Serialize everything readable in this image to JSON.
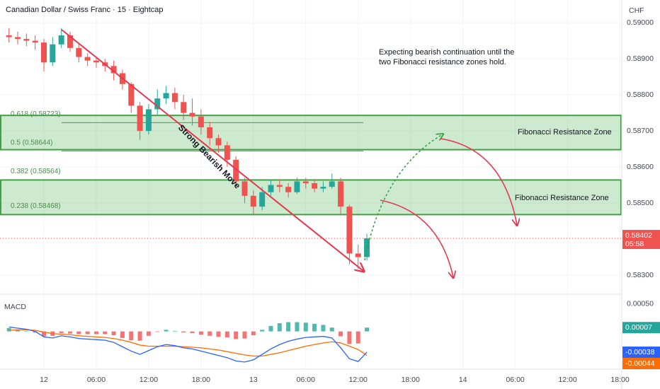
{
  "chart_data": [
    {
      "type": "candlestick",
      "title": "Canadian Dollar / Swiss Franc · 15 · Eightcap",
      "currency": "CHF",
      "countdown": "05:58",
      "up_color": "#26a69a",
      "down_color": "#ef5350",
      "grid": true,
      "x": [
        -4,
        -3,
        -2,
        -1,
        0,
        1,
        2,
        3,
        4,
        5,
        6,
        7,
        8,
        9,
        10,
        11,
        12,
        13,
        14,
        15,
        16,
        17,
        18,
        19,
        20,
        21,
        22,
        23,
        24,
        25,
        26,
        27,
        28,
        29,
        30,
        31,
        32,
        33,
        34,
        35,
        36,
        37
      ],
      "open": [
        0.58965,
        0.5896,
        0.58955,
        0.5895,
        0.58945,
        0.5889,
        0.5894,
        0.58965,
        0.5893,
        0.58905,
        0.58895,
        0.5889,
        0.5888,
        0.5886,
        0.5883,
        0.5877,
        0.587,
        0.5876,
        0.5879,
        0.58805,
        0.5878,
        0.5875,
        0.5874,
        0.5871,
        0.5868,
        0.5866,
        0.5862,
        0.5856,
        0.5852,
        0.5849,
        0.5853,
        0.5855,
        0.58545,
        0.5853,
        0.5856,
        0.58555,
        0.5854,
        0.58545,
        0.5856,
        0.5849,
        0.5836,
        0.5835
      ],
      "high": [
        0.58985,
        0.58975,
        0.5897,
        0.58965,
        0.58955,
        0.5896,
        0.58985,
        0.58975,
        0.5894,
        0.58915,
        0.58905,
        0.589,
        0.58895,
        0.5887,
        0.58835,
        0.5878,
        0.58775,
        0.58815,
        0.58825,
        0.5882,
        0.588,
        0.5879,
        0.5876,
        0.58725,
        0.5869,
        0.5867,
        0.5863,
        0.5857,
        0.58535,
        0.58545,
        0.58565,
        0.58565,
        0.58555,
        0.5857,
        0.5857,
        0.58565,
        0.5856,
        0.58582,
        0.5857,
        0.58495,
        0.58385,
        0.58415
      ],
      "low": [
        0.58945,
        0.5894,
        0.58935,
        0.58925,
        0.58865,
        0.5888,
        0.5893,
        0.5892,
        0.5889,
        0.5888,
        0.58875,
        0.58865,
        0.5884,
        0.58815,
        0.5875,
        0.58675,
        0.5869,
        0.58745,
        0.58775,
        0.5876,
        0.5873,
        0.58715,
        0.5869,
        0.5866,
        0.5864,
        0.586,
        0.5854,
        0.585,
        0.5847,
        0.5848,
        0.5852,
        0.5853,
        0.58515,
        0.58525,
        0.5854,
        0.5853,
        0.5853,
        0.5854,
        0.5847,
        0.5833,
        0.58318,
        0.5834
      ],
      "close": [
        0.5896,
        0.58955,
        0.5895,
        0.58945,
        0.5889,
        0.5894,
        0.58965,
        0.5893,
        0.58905,
        0.58895,
        0.5889,
        0.5888,
        0.5886,
        0.5883,
        0.5877,
        0.587,
        0.5876,
        0.5879,
        0.58805,
        0.5878,
        0.5875,
        0.5874,
        0.5871,
        0.5868,
        0.5866,
        0.5862,
        0.5856,
        0.5852,
        0.5849,
        0.5853,
        0.5855,
        0.58545,
        0.5853,
        0.5856,
        0.58555,
        0.5854,
        0.58545,
        0.5856,
        0.5849,
        0.5836,
        0.5835,
        0.58402
      ],
      "xlim": [
        -5.03,
        66.2
      ],
      "xticks": [
        {
          "value": 0,
          "label": "12"
        },
        {
          "value": 6,
          "label": "06:00"
        },
        {
          "value": 12,
          "label": "12:00"
        },
        {
          "value": 18,
          "label": "18:00"
        },
        {
          "value": 24,
          "label": "13"
        },
        {
          "value": 30,
          "label": "06:00"
        },
        {
          "value": 36,
          "label": "12:00"
        },
        {
          "value": 42,
          "label": "18:00"
        },
        {
          "value": 48,
          "label": "14"
        },
        {
          "value": 54,
          "label": "06:00"
        },
        {
          "value": 60,
          "label": "12:00"
        },
        {
          "value": 66,
          "label": "18:00"
        }
      ],
      "ylim": [
        0.58255,
        0.59063
      ],
      "yticks": [
        {
          "value": 0.59,
          "label": "0.59000"
        },
        {
          "value": 0.589,
          "label": "0.58900"
        },
        {
          "value": 0.588,
          "label": "0.58800"
        },
        {
          "value": 0.587,
          "label": "0.58700"
        },
        {
          "value": 0.586,
          "label": "0.58600"
        },
        {
          "value": 0.585,
          "label": "0.58500"
        },
        {
          "value": 0.584,
          "label": "0.58400"
        },
        {
          "value": 0.583,
          "label": "0.58300"
        }
      ],
      "fib_levels": [
        {
          "value": 0.58723,
          "label": "0.618 (0.58723)"
        },
        {
          "value": 0.58644,
          "label": "0.5 (0.58644)"
        },
        {
          "value": 0.58564,
          "label": "0.382 (0.58564)"
        },
        {
          "value": 0.58468,
          "label": "0.238 (0.58468)"
        }
      ],
      "zones": [
        {
          "label": "Fibonacci Resistance Zone",
          "top": 0.58743,
          "bottom": 0.58648
        },
        {
          "label": "Fibonacci Resistance Zone",
          "top": 0.58564,
          "bottom": 0.58468
        }
      ],
      "note": [
        "Expecting bearish continuation until the",
        "two Fibonacci resistance zones hold."
      ],
      "trend_label": "Strong Bearish Move"
    },
    {
      "type": "macd",
      "title": "MACD",
      "macd_color": "#2962ff",
      "signal_color": "#ff6d00",
      "up_color": "#26a69a",
      "down_color": "#ef5350",
      "macd": [
        8e-05,
        6e-05,
        4e-05,
        0,
        -0.0001,
        -0.00012,
        -8e-05,
        -0.0001,
        -0.00013,
        -0.00014,
        -0.00015,
        -0.00016,
        -0.0002,
        -0.00028,
        -0.00036,
        -0.00042,
        -0.00035,
        -0.00028,
        -0.00024,
        -0.00026,
        -0.0003,
        -0.00032,
        -0.00036,
        -0.0004,
        -0.00044,
        -0.00048,
        -0.00054,
        -0.00056,
        -0.00052,
        -0.00042,
        -0.00032,
        -0.00024,
        -0.00018,
        -0.00014,
        -0.00011,
        -0.0001,
        -9e-05,
        -0.00012,
        -0.0003,
        -0.0005,
        -0.00055,
        -0.00038
      ],
      "signal": [
        2e-05,
        3e-05,
        3e-05,
        2e-05,
        -1e-05,
        -4e-05,
        -5e-05,
        -6e-05,
        -8e-05,
        -9e-05,
        -0.0001,
        -0.00011,
        -0.00013,
        -0.00016,
        -0.0002,
        -0.00025,
        -0.00027,
        -0.00027,
        -0.00027,
        -0.00027,
        -0.00028,
        -0.00029,
        -0.0003,
        -0.00032,
        -0.00034,
        -0.00037,
        -0.0004,
        -0.00043,
        -0.00045,
        -0.00045,
        -0.00042,
        -0.00039,
        -0.00035,
        -0.00031,
        -0.00027,
        -0.00024,
        -0.00021,
        -0.00019,
        -0.00021,
        -0.00027,
        -0.00033,
        -0.00044
      ],
      "histogram": [
        6e-05,
        3e-05,
        1e-05,
        -2e-05,
        -9e-05,
        -8e-05,
        -3e-05,
        -4e-05,
        -5e-05,
        -5e-05,
        -5e-05,
        -5e-05,
        -7e-05,
        -0.00012,
        -0.00016,
        -0.00017,
        -8e-05,
        -1e-05,
        3e-05,
        1e-05,
        -2e-05,
        -3e-05,
        -6e-05,
        -8e-05,
        -0.0001,
        -0.00011,
        -0.00014,
        -0.00013,
        -7e-05,
        3e-05,
        0.0001,
        0.00015,
        0.00017,
        0.00017,
        0.00016,
        0.00014,
        0.00012,
        7e-05,
        -9e-05,
        -0.00023,
        -0.00022,
        7e-05
      ],
      "ylim": [
        -0.000665,
        0.000603
      ],
      "yticks": [
        {
          "value": 0.0005,
          "label": "0.00050"
        }
      ]
    }
  ]
}
